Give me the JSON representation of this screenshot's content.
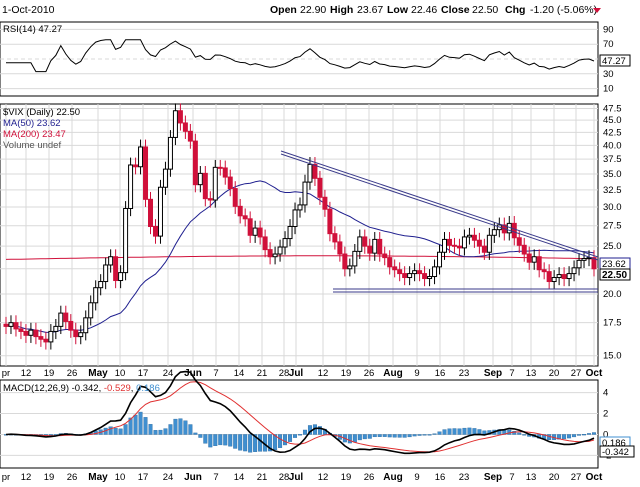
{
  "header": {
    "date_partial": "1-Oct-2010",
    "open_label": "Open",
    "open_value": "22.90",
    "high_label": "High",
    "high_value": "23.67",
    "low_label": "Low",
    "low_value": "22.46",
    "close_label": "Close",
    "close_value": "22.50",
    "chg_label": "Chg",
    "chg_value": "-1.20 (-5.06%)"
  },
  "colors": {
    "up": "#ffffff",
    "down": "#d0103a",
    "ma50": "#1f1f8f",
    "ma200": "#d0103a",
    "macd": "#000000",
    "signal": "#e03030",
    "hist": "#3f8fd0",
    "rsi": "#000000",
    "trend": "#3a3a8a"
  },
  "chart_data": [
    {
      "type": "line",
      "title": "RSI(14) 47.27",
      "series": [
        {
          "name": "RSI(14)",
          "last": 47.27
        }
      ],
      "y_ticks": [
        90,
        70,
        50,
        30,
        10
      ],
      "ylim": [
        0,
        100
      ],
      "last_value_label": "47.27"
    },
    {
      "type": "candlestick",
      "title": "$VIX (Daily) 22.50",
      "legend": [
        "MA(50) 23.62",
        "MA(200) 23.47",
        "Volume undef"
      ],
      "y_ticks": [
        "47.5",
        "45.0",
        "42.5",
        "40.0",
        "37.5",
        "35.0",
        "32.5",
        "30.0",
        "27.5",
        "25.0",
        "22.5",
        "20.0",
        "17.5",
        "15.0"
      ],
      "y_ticks_num": [
        47.5,
        45,
        42.5,
        40,
        37.5,
        35,
        32.5,
        30,
        27.5,
        25,
        22.5,
        20,
        17.5,
        15
      ],
      "ylim": [
        14.3,
        48.5
      ],
      "y_scale": "log",
      "price_labels": [
        "23.62",
        "22.50"
      ],
      "close": [
        17.2,
        17.5,
        17.0,
        16.8,
        16.5,
        16.9,
        16.4,
        16.2,
        16.0,
        16.8,
        17.2,
        18.3,
        17.6,
        16.9,
        16.4,
        16.7,
        17.9,
        19.2,
        20.6,
        21.2,
        22.9,
        23.8,
        21.3,
        22.1,
        29.8,
        36.5,
        36.2,
        39.7,
        31.1,
        27.4,
        26.2,
        32.9,
        35.8,
        41.5,
        47.0,
        44.4,
        42.7,
        40.8,
        33.3,
        35.1,
        31.2,
        31.0,
        36.1,
        36.0,
        34.5,
        32.7,
        30.1,
        28.8,
        28.4,
        26.3,
        27.2,
        26.1,
        24.6,
        23.8,
        24.1,
        24.9,
        25.9,
        27.4,
        29.6,
        30.3,
        33.7,
        36.6,
        34.3,
        31.4,
        29.7,
        26.5,
        25.5,
        24.1,
        22.5,
        22.8,
        24.4,
        26.1,
        25.0,
        24.2,
        25.8,
        24.1,
        23.7,
        22.7,
        22.4,
        22.0,
        21.6,
        22.0,
        22.3,
        22.0,
        21.5,
        21.7,
        22.7,
        24.3,
        25.8,
        25.1,
        25.0,
        24.8,
        26.1,
        26.3,
        25.7,
        25.0,
        24.3,
        26.3,
        27.0,
        27.6,
        26.6,
        27.8,
        26.0,
        25.1,
        24.1,
        23.2,
        23.8,
        22.4,
        22.2,
        21.2,
        21.6,
        21.9,
        21.5,
        22.0,
        22.6,
        23.4,
        23.6,
        23.7,
        22.5
      ],
      "ma50_note": "rises from ~18 (mid-May) to ~30.5 (early Jul) then declines to ~23.6",
      "ma200_note": "flat ~23.5–24.0"
    },
    {
      "type": "line",
      "title": "MACD(12,26,9) -0.342, -0.529, 0.186",
      "series": [
        {
          "name": "MACD(12,26,9)",
          "last": -0.342
        },
        {
          "name": "signal",
          "last": -0.529
        },
        {
          "name": "histogram",
          "last": 0.186
        }
      ],
      "y_ticks": [
        4,
        2,
        0,
        -2
      ],
      "ylim": [
        -3.2,
        5.2
      ],
      "last_value_labels": [
        "0.186",
        "-0.342"
      ]
    }
  ],
  "x_axis_labels": [
    "pr",
    "12",
    "19",
    "26",
    "May",
    "10",
    "17",
    "24",
    "Jun",
    "7",
    "14",
    "21",
    "28",
    "Jul",
    "12",
    "19",
    "26",
    "Aug",
    "9",
    "16",
    "23",
    "Sep",
    "7",
    "13",
    "20",
    "27",
    "Oct"
  ],
  "trendlines": {
    "upper": [
      [
        42.0,
        24.8
      ]
    ],
    "lower": [
      [
        21.0,
        21.0
      ]
    ]
  }
}
